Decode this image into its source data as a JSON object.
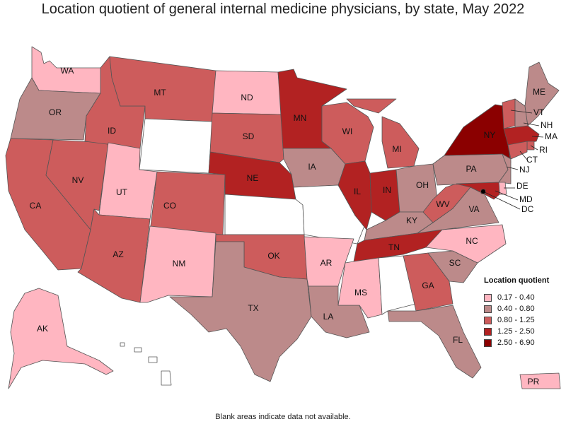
{
  "title": "Location quotient of general internal medicine physicians, by state, May 2022",
  "footnote": "Blank areas indicate data not available.",
  "legend": {
    "title": "Location quotient",
    "items": [
      {
        "label": "0.17 - 0.40",
        "color": "#ffb6c1"
      },
      {
        "label": "0.40 - 0.80",
        "color": "#bc8a8a"
      },
      {
        "label": "0.80 - 1.25",
        "color": "#cd5c5c"
      },
      {
        "label": "1.25 - 2.50",
        "color": "#b22222"
      },
      {
        "label": "2.50 - 6.90",
        "color": "#8b0000"
      }
    ]
  },
  "states": {
    "WA": {
      "label": "WA",
      "class": 0
    },
    "OR": {
      "label": "OR",
      "class": 1
    },
    "CA": {
      "label": "CA",
      "class": 2
    },
    "NV": {
      "label": "NV",
      "class": 2
    },
    "ID": {
      "label": "ID",
      "class": 2
    },
    "MT": {
      "label": "MT",
      "class": 2
    },
    "WY": {
      "label": "",
      "class": null
    },
    "UT": {
      "label": "UT",
      "class": 0
    },
    "AZ": {
      "label": "AZ",
      "class": 2
    },
    "CO": {
      "label": "CO",
      "class": 2
    },
    "NM": {
      "label": "NM",
      "class": 0
    },
    "ND": {
      "label": "ND",
      "class": 0
    },
    "SD": {
      "label": "SD",
      "class": 2
    },
    "NE": {
      "label": "NE",
      "class": 3
    },
    "KS": {
      "label": "",
      "class": null
    },
    "OK": {
      "label": "OK",
      "class": 2
    },
    "TX": {
      "label": "TX",
      "class": 1
    },
    "MN": {
      "label": "MN",
      "class": 3
    },
    "IA": {
      "label": "IA",
      "class": 1
    },
    "MO": {
      "label": "",
      "class": null
    },
    "AR": {
      "label": "AR",
      "class": 0
    },
    "LA": {
      "label": "LA",
      "class": 1
    },
    "WI": {
      "label": "WI",
      "class": 2
    },
    "IL": {
      "label": "IL",
      "class": 3
    },
    "MI": {
      "label": "MI",
      "class": 2
    },
    "IN": {
      "label": "IN",
      "class": 3
    },
    "OH": {
      "label": "OH",
      "class": 1
    },
    "KY": {
      "label": "KY",
      "class": 1
    },
    "TN": {
      "label": "TN",
      "class": 3
    },
    "MS": {
      "label": "MS",
      "class": 0
    },
    "AL": {
      "label": "",
      "class": null
    },
    "GA": {
      "label": "GA",
      "class": 2
    },
    "FL": {
      "label": "FL",
      "class": 1
    },
    "SC": {
      "label": "SC",
      "class": 1
    },
    "NC": {
      "label": "NC",
      "class": 0
    },
    "VA": {
      "label": "VA",
      "class": 1
    },
    "WV": {
      "label": "WV",
      "class": 2
    },
    "PA": {
      "label": "PA",
      "class": 1
    },
    "NY": {
      "label": "NY",
      "class": 4
    },
    "VT": {
      "label": "VT",
      "class": 2
    },
    "NH": {
      "label": "NH",
      "class": 1
    },
    "ME": {
      "label": "ME",
      "class": 1
    },
    "MA": {
      "label": "MA",
      "class": 3
    },
    "RI": {
      "label": "RI",
      "class": 2
    },
    "CT": {
      "label": "CT",
      "class": 2
    },
    "NJ": {
      "label": "NJ",
      "class": 1
    },
    "DE": {
      "label": "DE",
      "class": 0
    },
    "MD": {
      "label": "MD",
      "class": 3
    },
    "DC": {
      "label": "DC",
      "class": 4
    },
    "AK": {
      "label": "AK",
      "class": 0
    },
    "HI": {
      "label": "",
      "class": null
    },
    "PR": {
      "label": "PR",
      "class": 0
    }
  }
}
